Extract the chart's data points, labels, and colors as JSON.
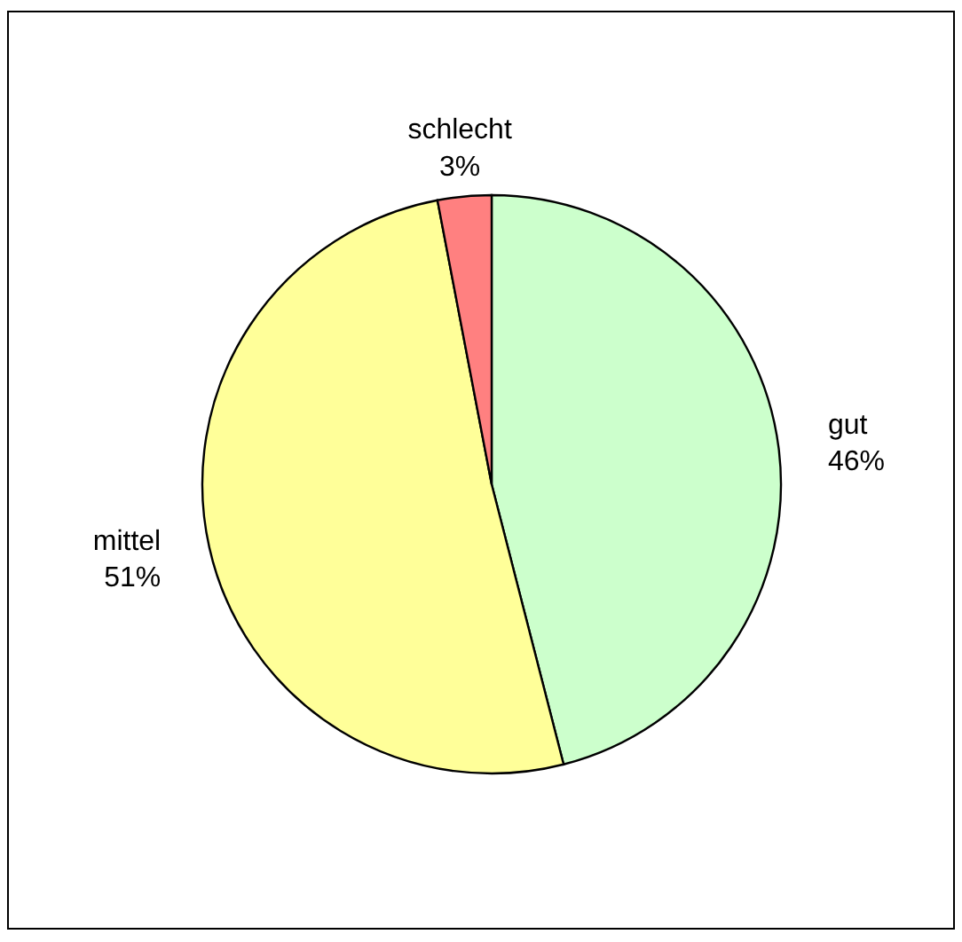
{
  "chart_data": {
    "type": "pie",
    "categories": [
      "gut",
      "mittel",
      "schlecht"
    ],
    "values": [
      46,
      51,
      3
    ],
    "colors": [
      "#ccffcc",
      "#ffff99",
      "#ff8080"
    ],
    "value_labels": [
      "46%",
      "51%",
      "3%"
    ]
  }
}
